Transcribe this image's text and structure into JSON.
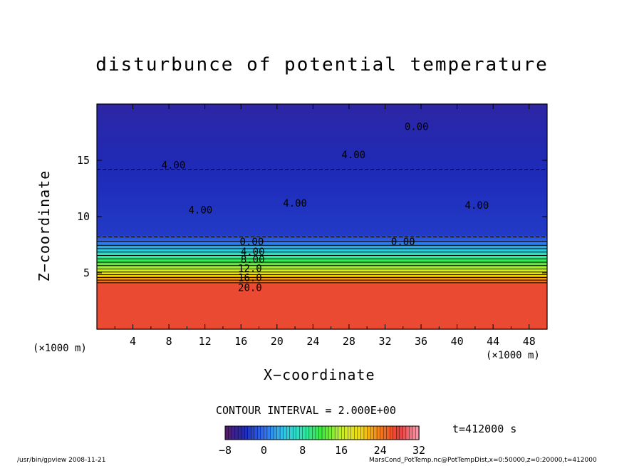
{
  "title": "disturbunce of potential temperature",
  "xlabel": "X−coordinate",
  "ylabel": "Z−coordinate",
  "x_unit_left": "(×1000 m)",
  "x_unit_right": "(×1000 m)",
  "contour_interval_text": "CONTOUR INTERVAL = 2.000E+00",
  "time_text": "t=412000 s",
  "footer_left": "/usr/bin/gpview   2008-11-21",
  "footer_right": "MarsCond_PotTemp.nc@PotTempDist,x=0:50000,z=0:20000,t=412000",
  "chart_data": {
    "type": "heatmap",
    "title": "disturbunce of potential temperature",
    "xlabel": "X−coordinate",
    "ylabel": "Z−coordinate",
    "x_unit": "(×1000 m)",
    "xlim": [
      0,
      50
    ],
    "ylim": [
      0,
      20
    ],
    "x_ticks": [
      4,
      8,
      12,
      16,
      20,
      24,
      28,
      32,
      36,
      40,
      44,
      48
    ],
    "y_ticks": [
      5,
      10,
      15
    ],
    "colorbar": {
      "min": -8,
      "max": 32,
      "ticks": [
        -8,
        0,
        8,
        16,
        24,
        32
      ],
      "colormap": [
        "#5a1a6a",
        "#1e2ab8",
        "#2f6cf0",
        "#2fc4e6",
        "#2ee6b4",
        "#3ee83a",
        "#c8ee30",
        "#f2d812",
        "#f47a18",
        "#e83a3a",
        "#f4a0b0"
      ]
    },
    "contour_interval": 2.0,
    "profile": [
      {
        "z": 0,
        "value": 27
      },
      {
        "z": 4,
        "value": 27
      },
      {
        "z": 4.6,
        "value": 22
      },
      {
        "z": 5.2,
        "value": 17
      },
      {
        "z": 5.8,
        "value": 13
      },
      {
        "z": 6.4,
        "value": 9
      },
      {
        "z": 7.0,
        "value": 5
      },
      {
        "z": 7.6,
        "value": 1
      },
      {
        "z": 8.4,
        "value": -3
      },
      {
        "z": 20,
        "value": -5
      }
    ],
    "contour_labels": [
      {
        "text": "0.00",
        "x": 35.5,
        "z": 18.0
      },
      {
        "text": "4.00",
        "x": 28.5,
        "z": 15.5
      },
      {
        "text": "4.00",
        "x": 8.5,
        "z": 14.6
      },
      {
        "text": "4.00",
        "x": 22.0,
        "z": 11.2
      },
      {
        "text": "4.00",
        "x": 11.5,
        "z": 10.6
      },
      {
        "text": "4.00",
        "x": 42.2,
        "z": 11.0
      },
      {
        "text": "0.00",
        "x": 17.2,
        "z": 7.8
      },
      {
        "text": "0.00",
        "x": 34.0,
        "z": 7.8
      },
      {
        "text": "4.00",
        "x": 17.3,
        "z": 6.9
      },
      {
        "text": "8.00",
        "x": 17.3,
        "z": 6.2
      },
      {
        "text": "12.0",
        "x": 17.0,
        "z": 5.4
      },
      {
        "text": "16.0",
        "x": 17.0,
        "z": 4.6
      },
      {
        "text": "20.0",
        "x": 17.0,
        "z": 3.7
      }
    ]
  }
}
